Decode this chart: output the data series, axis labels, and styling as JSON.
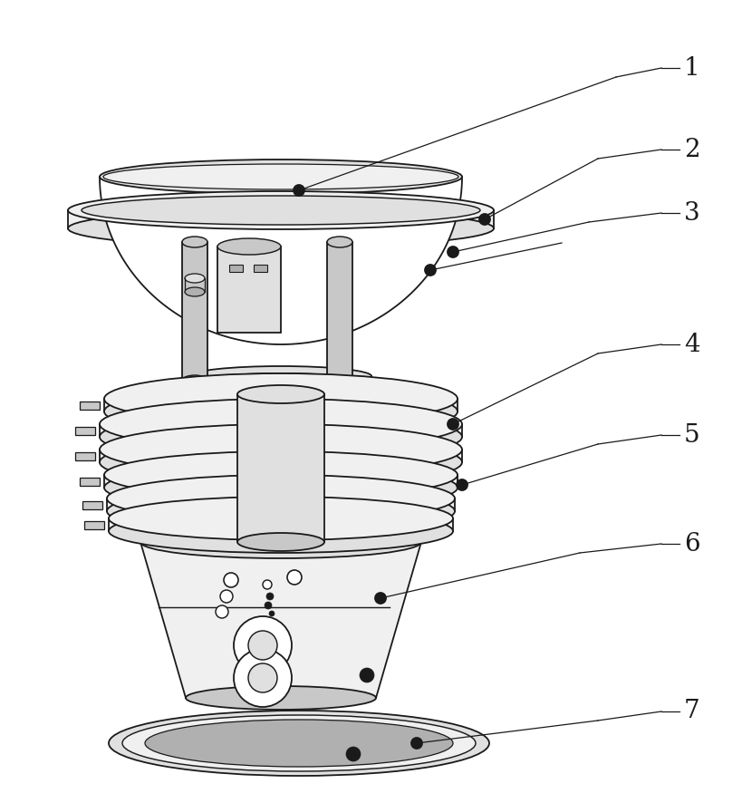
{
  "bg_color": "#ffffff",
  "lc": "#1a1a1a",
  "lw": 1.3,
  "fc_white": "#ffffff",
  "fc_light": "#f0f0f0",
  "fc_mid": "#e0e0e0",
  "fc_dark": "#c8c8c8",
  "fc_darkest": "#b0b0b0",
  "label_fontsize": 20,
  "label_color": "#1a1a1a",
  "leader_lw": 0.9
}
